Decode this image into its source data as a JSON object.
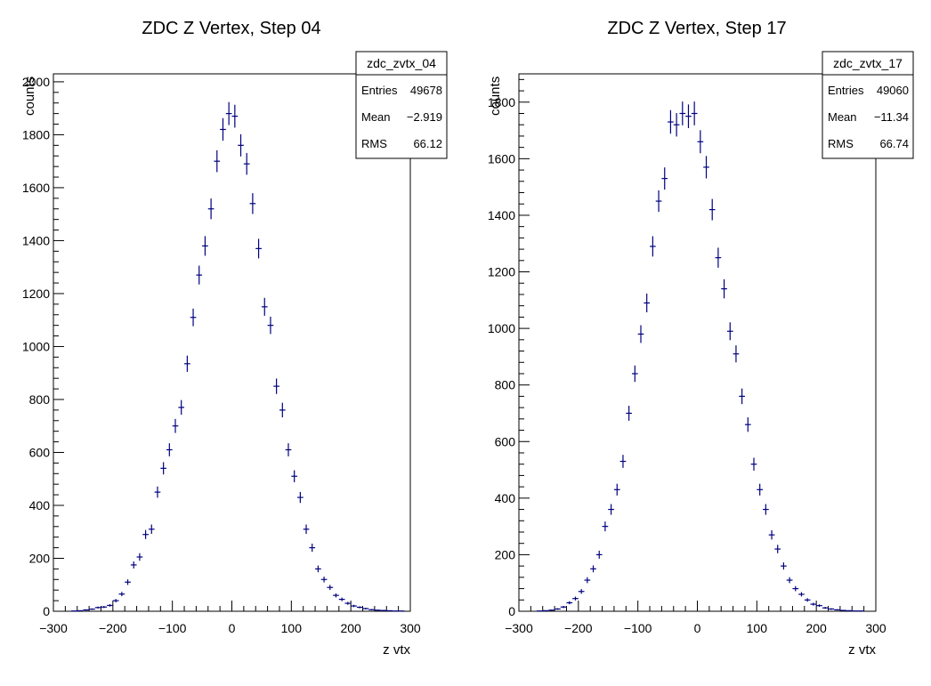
{
  "chart_data": [
    {
      "type": "scatter",
      "title": "ZDC Z Vertex, Step 04",
      "xlabel": "z vtx",
      "ylabel": "counts",
      "xlim": [
        -300,
        300
      ],
      "ylim": [
        0,
        2030
      ],
      "xticks": [
        -300,
        -200,
        -100,
        0,
        100,
        200,
        300
      ],
      "xtick_labels": [
        "−300",
        "−200",
        "−100",
        "0",
        "100",
        "200",
        "300"
      ],
      "yticks": [
        0,
        200,
        400,
        600,
        800,
        1000,
        1200,
        1400,
        1600,
        1800,
        2000
      ],
      "ytick_labels": [
        "0",
        "200",
        "400",
        "600",
        "800",
        "1000",
        "1200",
        "1400",
        "1600",
        "1800",
        "2000"
      ],
      "marker_color": "#000080",
      "stats_box": {
        "name": "zdc_zvtx_04",
        "rows": [
          {
            "label": "Entries",
            "value": "49678"
          },
          {
            "label": "Mean",
            "value": "−2.919"
          },
          {
            "label": "RMS",
            "value": "66.12"
          }
        ]
      },
      "series": [
        {
          "x": [
            -275,
            -265,
            -255,
            -245,
            -235,
            -225,
            -215,
            -205,
            -195,
            -185,
            -175,
            -165,
            -155,
            -145,
            -135,
            -125,
            -115,
            -105,
            -95,
            -85,
            -75,
            -65,
            -55,
            -45,
            -35,
            -25,
            -15,
            -5,
            5,
            15,
            25,
            35,
            45,
            55,
            65,
            75,
            85,
            95,
            105,
            115,
            125,
            135,
            145,
            155,
            165,
            175,
            185,
            195,
            205,
            215,
            225,
            235,
            245,
            255,
            265,
            275,
            285,
            295
          ],
          "y": [
            0,
            1,
            2,
            5,
            8,
            14,
            16,
            22,
            40,
            65,
            110,
            175,
            205,
            290,
            310,
            450,
            540,
            610,
            700,
            770,
            935,
            1110,
            1270,
            1380,
            1520,
            1700,
            1820,
            1880,
            1870,
            1760,
            1690,
            1540,
            1370,
            1150,
            1080,
            850,
            760,
            610,
            510,
            430,
            310,
            240,
            160,
            120,
            90,
            60,
            45,
            30,
            20,
            15,
            10,
            6,
            4,
            3,
            2,
            1,
            1,
            0
          ]
        }
      ]
    },
    {
      "type": "scatter",
      "title": "ZDC Z Vertex, Step 17",
      "xlabel": "z vtx",
      "ylabel": "counts",
      "xlim": [
        -300,
        300
      ],
      "ylim": [
        0,
        1900
      ],
      "xticks": [
        -300,
        -200,
        -100,
        0,
        100,
        200,
        300
      ],
      "xtick_labels": [
        "−300",
        "−200",
        "−100",
        "0",
        "100",
        "200",
        "300"
      ],
      "yticks": [
        0,
        200,
        400,
        600,
        800,
        1000,
        1200,
        1400,
        1600,
        1800
      ],
      "ytick_labels": [
        "0",
        "200",
        "400",
        "600",
        "800",
        "1000",
        "1200",
        "1400",
        "1600",
        "1800"
      ],
      "marker_color": "#000080",
      "stats_box": {
        "name": "zdc_zvtx_17",
        "rows": [
          {
            "label": "Entries",
            "value": "49060"
          },
          {
            "label": "Mean",
            "value": "−11.34"
          },
          {
            "label": "RMS",
            "value": "66.74"
          }
        ]
      },
      "series": [
        {
          "x": [
            -275,
            -265,
            -255,
            -245,
            -235,
            -225,
            -215,
            -205,
            -195,
            -185,
            -175,
            -165,
            -155,
            -145,
            -135,
            -125,
            -115,
            -105,
            -95,
            -85,
            -75,
            -65,
            -55,
            -45,
            -35,
            -25,
            -15,
            -5,
            5,
            15,
            25,
            35,
            45,
            55,
            65,
            75,
            85,
            95,
            105,
            115,
            125,
            135,
            145,
            155,
            165,
            175,
            185,
            195,
            205,
            215,
            225,
            235,
            245,
            255,
            265,
            275,
            285,
            295
          ],
          "y": [
            0,
            1,
            2,
            4,
            8,
            15,
            30,
            45,
            70,
            110,
            150,
            200,
            300,
            360,
            430,
            530,
            700,
            840,
            980,
            1090,
            1290,
            1450,
            1530,
            1730,
            1720,
            1760,
            1750,
            1760,
            1660,
            1570,
            1420,
            1250,
            1140,
            990,
            910,
            760,
            660,
            520,
            430,
            360,
            270,
            220,
            160,
            110,
            80,
            60,
            40,
            25,
            20,
            12,
            8,
            5,
            3,
            2,
            1,
            1,
            0,
            0
          ]
        }
      ]
    }
  ]
}
